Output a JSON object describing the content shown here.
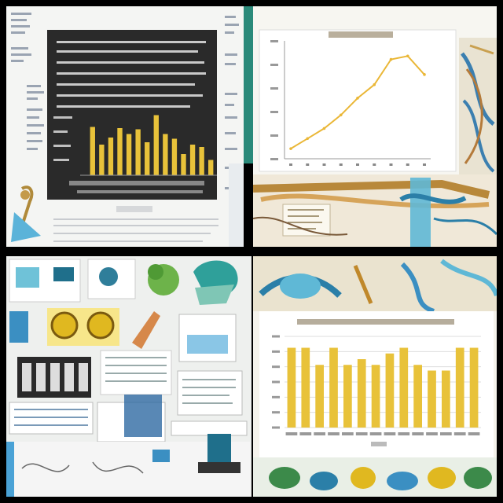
{
  "colors": {
    "bar_gold": "#e8c23a",
    "line_gold": "#eab737",
    "dark_panel": "#2a2a2a",
    "teal_strip": "#2b8a7a"
  },
  "chart_data": [
    {
      "type": "bar",
      "title": "",
      "values": [
        4.1,
        2.6,
        3.2,
        4.0,
        3.5,
        3.9,
        2.8,
        5.1,
        3.5,
        3.1,
        1.8,
        2.6,
        2.4,
        1.3
      ],
      "ylim": [
        0,
        6
      ],
      "grid": false
    },
    {
      "type": "line",
      "title": "",
      "x": [
        0,
        1,
        2,
        3,
        4,
        5,
        6,
        7,
        8
      ],
      "y": [
        1.6,
        2.2,
        2.8,
        3.6,
        4.6,
        5.4,
        6.9,
        7.1,
        6.0
      ],
      "ylim": [
        1,
        8
      ],
      "grid": false
    },
    {
      "type": "bar",
      "title": "",
      "values": [
        1.4,
        1.4,
        1.1,
        1.4,
        1.1,
        1.2,
        1.1,
        1.3,
        1.4,
        1.1,
        1.0,
        1.0,
        1.4,
        1.4
      ],
      "ylim": [
        0,
        1.6
      ],
      "grid": true
    }
  ]
}
